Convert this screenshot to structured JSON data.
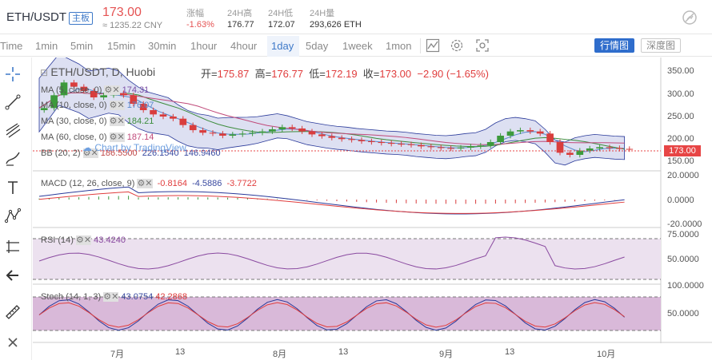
{
  "header": {
    "pair": "ETH/USDT",
    "badge": "主板",
    "price": "173.00",
    "cny": "≈ 1235.22 CNY",
    "stats": [
      {
        "label": "涨幅",
        "value": "-1.63%"
      },
      {
        "label": "24H高",
        "value": "176.77"
      },
      {
        "label": "24H低",
        "value": "172.07"
      },
      {
        "label": "24H量",
        "value": "293,626 ETH"
      }
    ]
  },
  "toolbar": {
    "timeframes": [
      "Time",
      "1min",
      "5min",
      "15min",
      "30min",
      "1hour",
      "4hour",
      "1day",
      "5day",
      "1week",
      "1mon"
    ],
    "active": "1day",
    "line_view": "行情图",
    "depth_view": "深度图"
  },
  "chart": {
    "symbol_label": "ETH/USDT, D, Huobi",
    "ohlc": {
      "open_label": "开=",
      "open": "175.87",
      "high_label": "高=",
      "high": "176.77",
      "low_label": "低=",
      "low": "172.19",
      "close_label": "收=",
      "close": "173.00",
      "change": "−2.90 (−1.65%)"
    },
    "indicators": [
      {
        "label": "MA (5, close, 0)",
        "value": "174.31"
      },
      {
        "label": "MA (10, close, 0)",
        "value": "176.07"
      },
      {
        "label": "MA (30, close, 0)",
        "value": "184.21"
      },
      {
        "label": "MA (60, close, 0)",
        "value": "187.14"
      },
      {
        "label": "BB (20, 2)",
        "value": "186.5500",
        "v2": "226.1540",
        "v3": "146.9460"
      }
    ],
    "watermark": "Chart by TradingView",
    "price_axis": [
      "350.00",
      "300.00",
      "250.00",
      "200.00",
      "150.00"
    ],
    "last_price": "173.00",
    "macd": {
      "label": "MACD (12, 26, close, 9)",
      "v1": "-0.8164",
      "v2": "-4.5886",
      "v3": "-3.7722",
      "axis": [
        "20.0000",
        "0.0000",
        "-20.0000"
      ]
    },
    "rsi": {
      "label": "RSI (14)",
      "value": "43.4240",
      "axis": [
        "75.0000",
        "50.0000"
      ]
    },
    "stoch": {
      "label": "Stoch (14, 1, 3)",
      "v1": "43.0754",
      "v2": "42.2868",
      "axis": [
        "100.0000",
        "50.0000"
      ]
    },
    "dates": [
      "7月",
      "13",
      "8月",
      "13",
      "9月",
      "13",
      "10月"
    ]
  },
  "chart_data": {
    "type": "candlestick",
    "close_series": [
      270,
      300,
      330,
      320,
      310,
      295,
      300,
      305,
      300,
      280,
      265,
      255,
      250,
      245,
      230,
      218,
      212,
      210,
      205,
      208,
      210,
      212,
      215,
      220,
      225,
      222,
      215,
      208,
      204,
      200,
      197,
      195,
      192,
      190,
      188,
      186,
      185,
      183,
      180,
      178,
      176,
      175,
      177,
      180,
      182,
      190,
      205,
      215,
      218,
      215,
      210,
      190,
      165,
      160,
      170,
      175,
      178,
      176,
      174,
      173
    ],
    "ylim": [
      130,
      370
    ],
    "colors": {
      "up": "#3c9a3c",
      "down": "#d93d3d",
      "bb_fill": "#c7cbe9",
      "rsi_fill": "#ece1ef",
      "stoch_fill": "#d9b9d9"
    }
  }
}
